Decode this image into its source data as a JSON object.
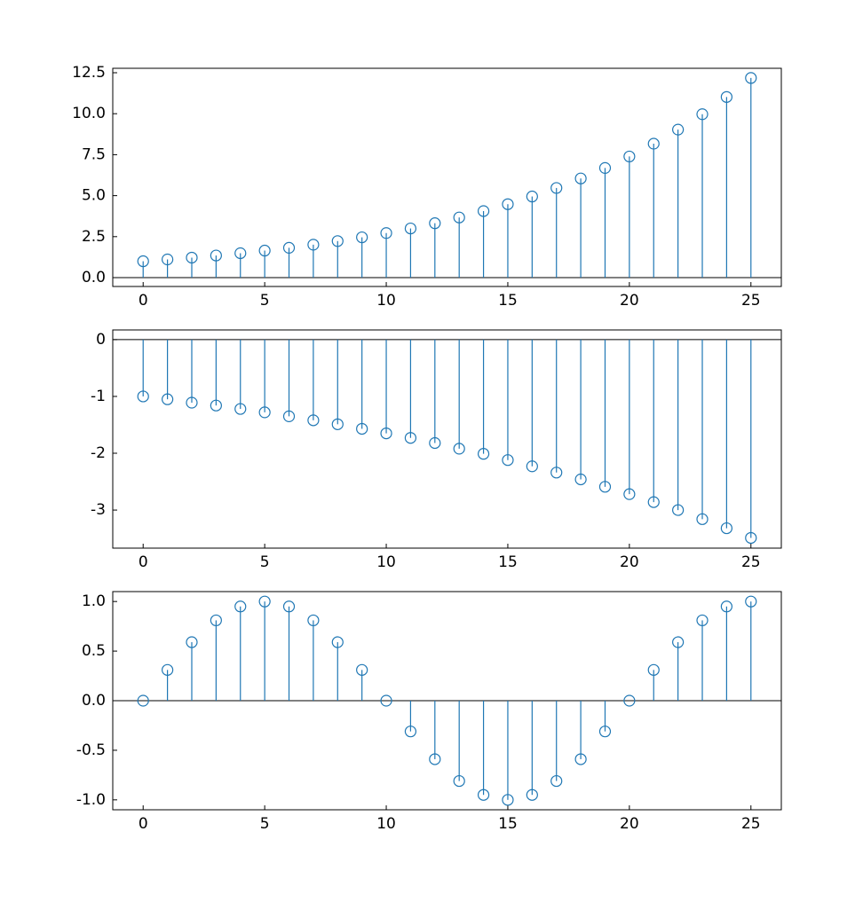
{
  "chart_data": [
    {
      "type": "stem",
      "color": "#1f77b4",
      "x": [
        0,
        1,
        2,
        3,
        4,
        5,
        6,
        7,
        8,
        9,
        10,
        11,
        12,
        13,
        14,
        15,
        16,
        17,
        18,
        19,
        20,
        21,
        22,
        23,
        24,
        25
      ],
      "values": [
        1.0,
        1.11,
        1.22,
        1.35,
        1.49,
        1.65,
        1.82,
        2.01,
        2.23,
        2.46,
        2.72,
        3.0,
        3.32,
        3.67,
        4.06,
        4.48,
        4.95,
        5.47,
        6.05,
        6.69,
        7.39,
        8.17,
        9.03,
        9.97,
        11.02,
        12.18
      ],
      "xlim": [
        -1.25,
        26.25
      ],
      "ylim": [
        -0.54,
        12.77
      ],
      "xticks": [
        0,
        5,
        10,
        15,
        20,
        25
      ],
      "yticks": [
        {
          "value": 0,
          "label": "0.0"
        },
        2.5,
        {
          "value": 5,
          "label": "5.0"
        },
        7.5,
        {
          "value": 10,
          "label": "10.0"
        },
        12.5
      ]
    },
    {
      "type": "stem",
      "color": "#1f77b4",
      "x": [
        0,
        1,
        2,
        3,
        4,
        5,
        6,
        7,
        8,
        9,
        10,
        11,
        12,
        13,
        14,
        15,
        16,
        17,
        18,
        19,
        20,
        21,
        22,
        23,
        24,
        25
      ],
      "values": [
        -1.0,
        -1.05,
        -1.11,
        -1.16,
        -1.22,
        -1.28,
        -1.35,
        -1.42,
        -1.49,
        -1.57,
        -1.65,
        -1.73,
        -1.82,
        -1.92,
        -2.01,
        -2.12,
        -2.23,
        -2.34,
        -2.46,
        -2.59,
        -2.72,
        -2.86,
        -3.0,
        -3.16,
        -3.32,
        -3.49
      ],
      "xlim": [
        -1.25,
        26.25
      ],
      "ylim": [
        -3.67,
        0.17
      ],
      "xticks": [
        0,
        5,
        10,
        15,
        20,
        25
      ],
      "yticks": [
        0,
        -1,
        -2,
        -3
      ]
    },
    {
      "type": "stem",
      "color": "#1f77b4",
      "x": [
        0,
        1,
        2,
        3,
        4,
        5,
        6,
        7,
        8,
        9,
        10,
        11,
        12,
        13,
        14,
        15,
        16,
        17,
        18,
        19,
        20,
        21,
        22,
        23,
        24,
        25
      ],
      "values": [
        0,
        0.31,
        0.59,
        0.81,
        0.95,
        1.0,
        0.95,
        0.81,
        0.59,
        0.31,
        0,
        -0.31,
        -0.59,
        -0.81,
        -0.95,
        -1.0,
        -0.95,
        -0.81,
        -0.59,
        -0.31,
        0,
        0.31,
        0.59,
        0.81,
        0.95,
        1.0
      ],
      "xlim": [
        -1.25,
        26.25
      ],
      "ylim": [
        -1.1,
        1.1
      ],
      "xticks": [
        0,
        5,
        10,
        15,
        20,
        25
      ],
      "yticks": [
        {
          "value": -1,
          "label": "-1.0"
        },
        -0.5,
        {
          "value": 0,
          "label": "0.0"
        },
        0.5,
        {
          "value": 1,
          "label": "1.0"
        }
      ]
    }
  ]
}
